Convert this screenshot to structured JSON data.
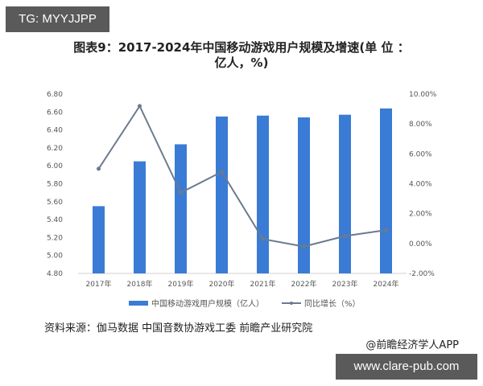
{
  "watermark_top": "TG: MYYJJPP",
  "watermark_bottom": "www.clare-pub.com",
  "title_line1": "图表9：2017-2024年中国移动游戏用户规模及增速(单 位 ：",
  "title_line2": "亿人，%)",
  "source": "资料来源：伽马数据 中国音数协游戏工委 前瞻产业研究院",
  "credit": "@前瞻经济学人APP",
  "colors": {
    "bar": "#3a7bd5",
    "line": "#6b7a8f",
    "axis": "#d0d0d0"
  },
  "chart_data": {
    "type": "bar+line",
    "title": "图表9：2017-2024年中国移动游戏用户规模及增速(单 位 ：亿人，%)",
    "categories": [
      "2017年",
      "2018年",
      "2019年",
      "2020年",
      "2021年",
      "2022年",
      "2023年",
      "2024年"
    ],
    "series": [
      {
        "name": "中国移动游戏用户规模（亿人）",
        "type": "bar",
        "axis": "left",
        "values": [
          5.55,
          6.05,
          6.24,
          6.55,
          6.56,
          6.54,
          6.57,
          6.64
        ]
      },
      {
        "name": "同比增长（%）",
        "type": "line",
        "axis": "right",
        "values": [
          5.0,
          9.2,
          3.4,
          4.8,
          0.3,
          -0.2,
          0.5,
          0.9
        ]
      }
    ],
    "left_axis": {
      "ticks": [
        "6.80",
        "6.60",
        "6.40",
        "6.20",
        "6.00",
        "5.80",
        "5.60",
        "5.40",
        "5.20",
        "5.00",
        "4.80"
      ],
      "ylim": [
        4.8,
        6.8
      ]
    },
    "right_axis": {
      "ticks": [
        "10.00%",
        "8.00%",
        "6.00%",
        "4.00%",
        "2.00%",
        "0.00%",
        "-2.00%"
      ],
      "ylim": [
        -2,
        10
      ]
    },
    "legend_position": "bottom",
    "grid": false,
    "xlabel": "",
    "ylabel": ""
  }
}
